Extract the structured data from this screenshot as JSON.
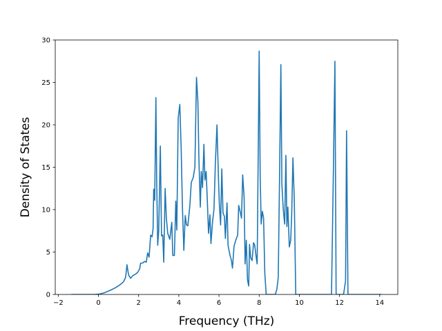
{
  "chart_data": {
    "type": "line",
    "title": "",
    "xlabel": "Frequency (THz)",
    "ylabel": "Density of States",
    "xlim": [
      -2.15,
      14.9
    ],
    "ylim": [
      0,
      30
    ],
    "x_ticks": [
      -2,
      0,
      2,
      4,
      6,
      8,
      10,
      12,
      14
    ],
    "y_ticks": [
      0,
      5,
      10,
      15,
      20,
      25,
      30
    ],
    "grid": false,
    "legend": "none",
    "series": [
      {
        "color": "#1f77b4",
        "points": [
          [
            -1.35,
            0
          ],
          [
            -0.2,
            0
          ],
          [
            0.05,
            0.05
          ],
          [
            0.3,
            0.2
          ],
          [
            0.6,
            0.5
          ],
          [
            0.85,
            0.8
          ],
          [
            1.05,
            1.1
          ],
          [
            1.25,
            1.5
          ],
          [
            1.35,
            2.0
          ],
          [
            1.42,
            3.5
          ],
          [
            1.5,
            2.3
          ],
          [
            1.6,
            1.9
          ],
          [
            1.7,
            2.2
          ],
          [
            1.85,
            2.4
          ],
          [
            1.95,
            2.6
          ],
          [
            2.05,
            3.0
          ],
          [
            2.1,
            3.7
          ],
          [
            2.2,
            3.7
          ],
          [
            2.3,
            3.9
          ],
          [
            2.38,
            3.8
          ],
          [
            2.45,
            4.9
          ],
          [
            2.52,
            4.4
          ],
          [
            2.6,
            7.0
          ],
          [
            2.67,
            6.8
          ],
          [
            2.72,
            7.8
          ],
          [
            2.75,
            12.4
          ],
          [
            2.8,
            11.1
          ],
          [
            2.86,
            23.2
          ],
          [
            2.9,
            13.3
          ],
          [
            2.95,
            5.8
          ],
          [
            3.0,
            7.5
          ],
          [
            3.08,
            17.5
          ],
          [
            3.14,
            6.9
          ],
          [
            3.2,
            7.0
          ],
          [
            3.25,
            3.8
          ],
          [
            3.32,
            12.5
          ],
          [
            3.38,
            9.0
          ],
          [
            3.45,
            7.2
          ],
          [
            3.55,
            6.5
          ],
          [
            3.65,
            8.5
          ],
          [
            3.7,
            4.6
          ],
          [
            3.78,
            4.6
          ],
          [
            3.85,
            11.0
          ],
          [
            3.9,
            7.6
          ],
          [
            3.97,
            20.8
          ],
          [
            4.05,
            22.4
          ],
          [
            4.12,
            17.0
          ],
          [
            4.18,
            10.3
          ],
          [
            4.25,
            5.2
          ],
          [
            4.32,
            9.3
          ],
          [
            4.38,
            8.2
          ],
          [
            4.45,
            8.1
          ],
          [
            4.55,
            10.5
          ],
          [
            4.62,
            13.2
          ],
          [
            4.72,
            13.8
          ],
          [
            4.8,
            15.0
          ],
          [
            4.88,
            25.6
          ],
          [
            4.95,
            22.7
          ],
          [
            5.0,
            16.0
          ],
          [
            5.07,
            10.3
          ],
          [
            5.12,
            14.5
          ],
          [
            5.18,
            12.6
          ],
          [
            5.25,
            17.7
          ],
          [
            5.3,
            13.5
          ],
          [
            5.36,
            14.5
          ],
          [
            5.42,
            11.0
          ],
          [
            5.48,
            7.2
          ],
          [
            5.55,
            9.4
          ],
          [
            5.6,
            6.0
          ],
          [
            5.68,
            8.6
          ],
          [
            5.75,
            10.0
          ],
          [
            5.82,
            15.5
          ],
          [
            5.9,
            20.0
          ],
          [
            5.97,
            14.0
          ],
          [
            6.02,
            10.5
          ],
          [
            6.08,
            8.2
          ],
          [
            6.14,
            14.8
          ],
          [
            6.2,
            9.6
          ],
          [
            6.27,
            9.2
          ],
          [
            6.32,
            6.6
          ],
          [
            6.4,
            10.8
          ],
          [
            6.45,
            5.8
          ],
          [
            6.55,
            4.6
          ],
          [
            6.62,
            4.0
          ],
          [
            6.67,
            3.1
          ],
          [
            6.75,
            5.7
          ],
          [
            6.85,
            6.5
          ],
          [
            6.93,
            7.0
          ],
          [
            6.98,
            10.5
          ],
          [
            7.05,
            9.8
          ],
          [
            7.12,
            9.0
          ],
          [
            7.18,
            14.1
          ],
          [
            7.25,
            11.5
          ],
          [
            7.3,
            3.6
          ],
          [
            7.36,
            6.4
          ],
          [
            7.42,
            1.7
          ],
          [
            7.48,
            1.0
          ],
          [
            7.52,
            5.9
          ],
          [
            7.58,
            4.3
          ],
          [
            7.65,
            4.0
          ],
          [
            7.72,
            6.1
          ],
          [
            7.78,
            5.8
          ],
          [
            7.85,
            4.4
          ],
          [
            7.9,
            3.6
          ],
          [
            7.95,
            16.0
          ],
          [
            8.0,
            28.7
          ],
          [
            8.05,
            14.0
          ],
          [
            8.1,
            8.3
          ],
          [
            8.16,
            9.8
          ],
          [
            8.22,
            9.0
          ],
          [
            8.28,
            2.5
          ],
          [
            8.35,
            0
          ],
          [
            8.8,
            0
          ],
          [
            8.88,
            0.6
          ],
          [
            8.95,
            2.0
          ],
          [
            9.02,
            15.0
          ],
          [
            9.08,
            27.1
          ],
          [
            9.13,
            13.0
          ],
          [
            9.2,
            10.0
          ],
          [
            9.27,
            8.3
          ],
          [
            9.33,
            16.4
          ],
          [
            9.38,
            8.0
          ],
          [
            9.43,
            10.3
          ],
          [
            9.5,
            5.6
          ],
          [
            9.57,
            6.4
          ],
          [
            9.62,
            9.5
          ],
          [
            9.68,
            16.1
          ],
          [
            9.75,
            11.0
          ],
          [
            9.82,
            0
          ],
          [
            11.6,
            0
          ],
          [
            11.7,
            15.5
          ],
          [
            11.77,
            27.5
          ],
          [
            11.83,
            0
          ],
          [
            12.2,
            0
          ],
          [
            12.3,
            1.6
          ],
          [
            12.35,
            19.3
          ],
          [
            12.42,
            0
          ],
          [
            12.65,
            0
          ],
          [
            14.1,
            0
          ]
        ]
      }
    ]
  }
}
